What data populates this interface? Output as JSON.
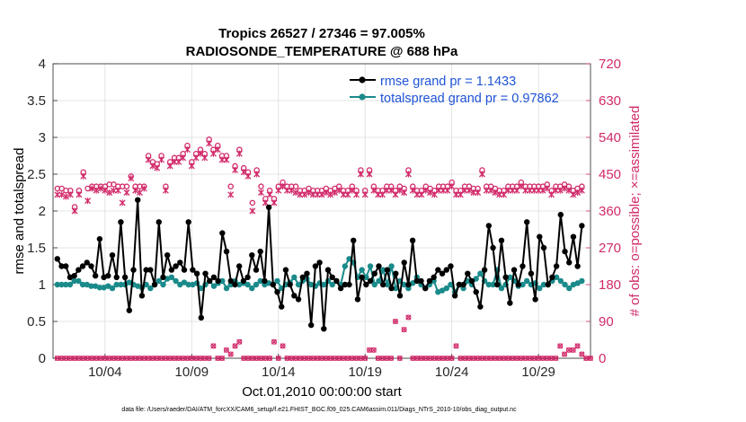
{
  "chart_data": {
    "type": "line",
    "title": "Tropics 26527 / 27346 = 97.005%",
    "subtitle": "RADIOSONDE_TEMPERATURE @ 688 hPa",
    "xlabel": "Oct.01,2010 00:00:00 start",
    "ylabel_left": "rmse and totalspread",
    "ylabel_right": "# of obs: o=possible; ×=assimilated",
    "footer": "data file: /Users/raeder/DAI/ATM_forcXX/CAM6_setup/f.e21.FHIST_BGC.f09_025.CAM6assim.011/Diags_NTrS_2010-10/obs_diag_output.nc",
    "xlim": [
      1,
      32
    ],
    "x_ticks": [
      4,
      9,
      14,
      19,
      24,
      29
    ],
    "x_tick_labels": [
      "10/04",
      "10/09",
      "10/14",
      "10/19",
      "10/24",
      "10/29"
    ],
    "ylim_left": [
      0,
      4
    ],
    "y_ticks_left": [
      "0",
      "0.5",
      "1",
      "1.5",
      "2",
      "2.5",
      "3",
      "3.5",
      "4"
    ],
    "ylim_right": [
      0,
      720
    ],
    "y_ticks_right": [
      "0",
      "90",
      "180",
      "270",
      "360",
      "450",
      "540",
      "630",
      "720"
    ],
    "grid": true,
    "legend_position": "top-right",
    "series": [
      {
        "name": "rmse grand pr = 1.1433",
        "color": "#000000",
        "axis": "left",
        "values": [
          1.35,
          1.25,
          1.25,
          1.1,
          1.12,
          1.2,
          1.25,
          1.3,
          1.25,
          1.12,
          1.62,
          1.1,
          1.12,
          1.4,
          1.1,
          1.85,
          1.1,
          0.65,
          1.2,
          2.15,
          0.85,
          1.2,
          1.2,
          1.0,
          1.85,
          1.1,
          1.4,
          1.2,
          1.25,
          1.3,
          1.2,
          1.85,
          1.2,
          1.15,
          0.55,
          1.15,
          1.05,
          1.1,
          1.05,
          1.7,
          1.45,
          1.05,
          1.0,
          1.25,
          1.05,
          1.1,
          1.4,
          1.2,
          1.45,
          1.05,
          2.05,
          1.0,
          0.9,
          0.7,
          1.2,
          1.0,
          0.85,
          0.8,
          1.1,
          1.15,
          0.45,
          1.25,
          1.3,
          0.4,
          1.2,
          1.1,
          1.05,
          0.95,
          1.0,
          1.0,
          1.6,
          0.8,
          1.1,
          1.0,
          1.05,
          1.15,
          1.25,
          1.0,
          1.2,
          0.95,
          1.15,
          0.85,
          1.3,
          1.0,
          1.6,
          1.05,
          1.05,
          0.95,
          1.05,
          1.1,
          1.2,
          1.15,
          1.2,
          1.25,
          0.85,
          1.0,
          1.0,
          1.15,
          1.05,
          0.9,
          0.7,
          1.2,
          1.8,
          1.5,
          1.0,
          1.6,
          1.1,
          0.75,
          1.2,
          1.0,
          1.25,
          1.85,
          1.15,
          0.8,
          1.65,
          1.5,
          1.0,
          1.1,
          1.25,
          1.95,
          1.45,
          1.3,
          1.65,
          1.25,
          1.8
        ]
      },
      {
        "name": "totalspread grand pr = 0.97862",
        "color": "#1a8a8a",
        "axis": "left",
        "values": [
          1.0,
          1.0,
          1.0,
          1.0,
          1.05,
          1.05,
          1.0,
          1.0,
          0.98,
          0.98,
          0.96,
          0.96,
          0.98,
          0.95,
          1.0,
          1.0,
          1.0,
          1.03,
          1.0,
          0.98,
          0.96,
          1.0,
          0.95,
          1.0,
          1.05,
          1.0,
          1.08,
          1.1,
          1.05,
          1.0,
          1.03,
          1.0,
          1.0,
          1.02,
          0.95,
          1.0,
          1.05,
          0.98,
          1.02,
          1.05,
          0.95,
          1.0,
          1.05,
          1.0,
          1.02,
          1.0,
          0.95,
          1.0,
          1.05,
          1.0,
          1.02,
          1.0,
          1.05,
          0.95,
          1.0,
          1.03,
          1.1,
          1.0,
          1.05,
          1.08,
          1.0,
          0.98,
          1.02,
          1.0,
          1.05,
          1.0,
          1.05,
          1.0,
          1.25,
          1.35,
          1.3,
          1.1,
          1.2,
          1.1,
          1.25,
          1.0,
          1.05,
          1.2,
          1.0,
          1.25,
          0.95,
          1.05,
          1.0,
          0.95,
          1.02,
          1.1,
          1.0,
          0.95,
          1.0,
          1.05,
          0.9,
          0.92,
          0.95,
          1.0,
          0.9,
          1.0,
          0.95,
          1.05,
          1.0,
          1.08,
          1.15,
          1.05,
          1.0,
          1.0,
          1.2,
          0.95,
          1.0,
          1.1,
          1.05,
          0.98,
          1.0,
          1.05,
          1.0,
          1.02,
          0.95,
          1.0,
          1.0,
          1.05,
          1.1,
          1.05,
          1.0,
          0.95,
          1.0,
          1.02,
          1.05
        ]
      },
      {
        "name": "possible",
        "color": "#d12a6a",
        "axis": "right",
        "marker": "o",
        "x": [
          1.25,
          1.5,
          1.75,
          2.0,
          2.25,
          2.5,
          2.75,
          3.0,
          3.25,
          3.5,
          3.75,
          4.0,
          4.25,
          4.5,
          4.75,
          5.0,
          5.25,
          5.5,
          5.75,
          6.0,
          6.25,
          6.5,
          6.75,
          7.0,
          7.25,
          7.5,
          7.75,
          8.0,
          8.25,
          8.5,
          8.75,
          9.0,
          9.25,
          9.5,
          9.75,
          10.0,
          10.25,
          10.5,
          10.75,
          11.0,
          11.25,
          11.5,
          11.75,
          12.0,
          12.25,
          12.5,
          12.75,
          13.0,
          13.25,
          13.5,
          13.75,
          14.0,
          14.25,
          14.5,
          14.75,
          15.0,
          15.25,
          15.5,
          15.75,
          16.0,
          16.25,
          16.5,
          16.75,
          17.0,
          17.25,
          17.5,
          17.75,
          18.0,
          18.25,
          18.5,
          18.75,
          19.0,
          19.25,
          19.5,
          19.75,
          20.0,
          20.25,
          20.5,
          20.75,
          21.0,
          21.25,
          21.5,
          21.75,
          22.0,
          22.25,
          22.5,
          22.75,
          23.0,
          23.25,
          23.5,
          23.75,
          24.0,
          24.25,
          24.5,
          24.75,
          25.0,
          25.25,
          25.5,
          25.75,
          26.0,
          26.25,
          26.5,
          26.75,
          27.0,
          27.25,
          27.5,
          27.75,
          28.0,
          28.25,
          28.5,
          28.75,
          29.0,
          29.25,
          29.5,
          29.75,
          30.0,
          30.25,
          30.5,
          30.75,
          31.0,
          31.25,
          31.5
        ],
        "values": [
          415,
          415,
          410,
          410,
          370,
          410,
          455,
          415,
          420,
          420,
          420,
          420,
          425,
          425,
          420,
          420,
          420,
          445,
          420,
          420,
          420,
          495,
          480,
          475,
          495,
          420,
          480,
          490,
          490,
          500,
          520,
          480,
          500,
          510,
          500,
          535,
          510,
          520,
          495,
          495,
          420,
          470,
          510,
          465,
          455,
          380,
          460,
          420,
          390,
          410,
          390,
          420,
          430,
          420,
          420,
          420,
          410,
          410,
          415,
          410,
          410,
          410,
          415,
          410,
          415,
          420,
          410,
          410,
          420,
          410,
          460,
          410,
          460,
          420,
          410,
          410,
          420,
          420,
          410,
          420,
          415,
          460,
          420,
          410,
          410,
          420,
          415,
          410,
          420,
          420,
          420,
          430,
          410,
          410,
          420,
          420,
          415,
          415,
          460,
          420,
          420,
          415,
          410,
          410,
          420,
          420,
          420,
          430,
          420,
          420,
          420,
          420,
          420,
          425,
          410,
          420,
          420,
          425,
          420,
          410,
          415,
          420
        ]
      },
      {
        "name": "assimilated",
        "color": "#d12a6a",
        "axis": "right",
        "marker": "x",
        "x": [
          1.25,
          1.5,
          1.75,
          2.0,
          2.25,
          2.5,
          2.75,
          3.0,
          3.25,
          3.5,
          3.75,
          4.0,
          4.25,
          4.5,
          4.75,
          5.0,
          5.25,
          5.5,
          5.75,
          6.0,
          6.25,
          6.5,
          6.75,
          7.0,
          7.25,
          7.5,
          7.75,
          8.0,
          8.25,
          8.5,
          8.75,
          9.0,
          9.25,
          9.5,
          9.75,
          10.0,
          10.25,
          10.5,
          10.75,
          11.0,
          11.25,
          11.5,
          11.75,
          12.0,
          12.25,
          12.5,
          12.75,
          13.0,
          13.25,
          13.5,
          13.75,
          14.0,
          14.25,
          14.5,
          14.75,
          15.0,
          15.25,
          15.5,
          15.75,
          16.0,
          16.25,
          16.5,
          16.75,
          17.0,
          17.25,
          17.5,
          17.75,
          18.0,
          18.25,
          18.5,
          18.75,
          19.0,
          19.25,
          19.5,
          19.75,
          20.0,
          20.25,
          20.5,
          20.75,
          21.0,
          21.25,
          21.5,
          21.75,
          22.0,
          22.25,
          22.5,
          22.75,
          23.0,
          23.25,
          23.5,
          23.75,
          24.0,
          24.25,
          24.5,
          24.75,
          25.0,
          25.25,
          25.5,
          25.75,
          26.0,
          26.25,
          26.5,
          26.75,
          27.0,
          27.25,
          27.5,
          27.75,
          28.0,
          28.25,
          28.5,
          28.75,
          29.0,
          29.25,
          29.5,
          29.75,
          30.0,
          30.25,
          30.5,
          30.75,
          31.0,
          31.25,
          31.5
        ],
        "values": [
          400,
          400,
          395,
          400,
          360,
          400,
          445,
          385,
          415,
          410,
          415,
          410,
          405,
          410,
          410,
          380,
          405,
          440,
          410,
          405,
          415,
          485,
          470,
          465,
          485,
          410,
          470,
          480,
          480,
          490,
          510,
          470,
          490,
          500,
          490,
          525,
          500,
          510,
          485,
          485,
          400,
          460,
          500,
          455,
          445,
          360,
          450,
          405,
          380,
          400,
          380,
          410,
          420,
          410,
          410,
          405,
          400,
          400,
          405,
          400,
          400,
          400,
          405,
          400,
          405,
          410,
          400,
          400,
          410,
          400,
          450,
          400,
          450,
          410,
          400,
          400,
          410,
          410,
          400,
          410,
          405,
          450,
          410,
          400,
          400,
          410,
          405,
          400,
          410,
          410,
          410,
          420,
          400,
          400,
          410,
          410,
          405,
          405,
          450,
          410,
          410,
          405,
          400,
          400,
          410,
          410,
          410,
          420,
          410,
          410,
          410,
          410,
          410,
          415,
          400,
          410,
          410,
          415,
          410,
          400,
          405,
          410
        ]
      }
    ]
  },
  "legend": {
    "rmse_label": "rmse grand pr = 1.1433",
    "spread_label": "totalspread grand pr = 0.97862"
  }
}
